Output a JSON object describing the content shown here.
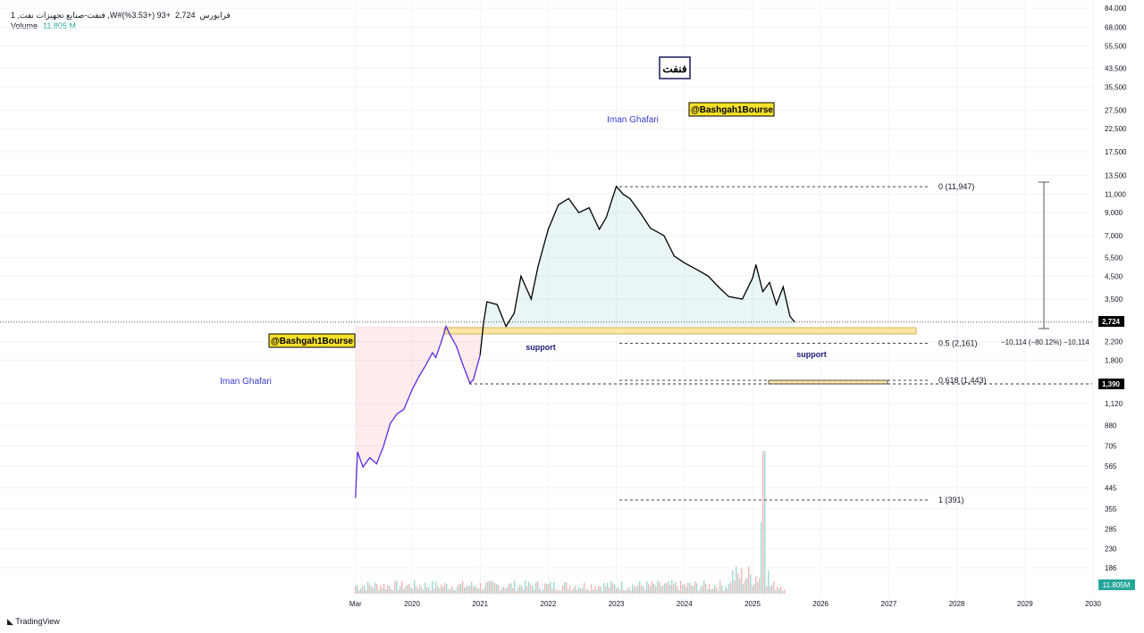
{
  "header": {
    "symbol": "1 ,فنفت-صنایع تجهیزات نفت ,W#فرابورس",
    "price": "2,724",
    "change": "+93 (+3.53%)",
    "volume_label": "Volume",
    "volume_value": "11.805 M"
  },
  "branding": "TradingView",
  "chart_data": {
    "type": "line",
    "title": "فنفت",
    "yscale": "log",
    "ylim": [
      180,
      90000
    ],
    "xlim": [
      2019.0,
      2030.1
    ],
    "y_ticks": [
      "84,000",
      "68,000",
      "55,500",
      "43,500",
      "35,500",
      "27,500",
      "22,500",
      "17,500",
      "13,500",
      "11,000",
      "9,000",
      "7,000",
      "5,500",
      "4,500",
      "3,500",
      "2,200",
      "1,800",
      "1,120",
      "880",
      "705",
      "565",
      "445",
      "355",
      "285",
      "230",
      "186"
    ],
    "y_tick_values": [
      84000,
      68000,
      55500,
      43500,
      35500,
      27500,
      22500,
      17500,
      13500,
      11000,
      9000,
      7000,
      5500,
      4500,
      3500,
      2200,
      1800,
      1120,
      880,
      705,
      565,
      445,
      355,
      285,
      230,
      186
    ],
    "x_ticks": [
      "Mar",
      "2020",
      "2021",
      "2022",
      "2023",
      "2024",
      "2025",
      "2026",
      "2027",
      "2028",
      "2029",
      "2030"
    ],
    "x_tick_values": [
      2019.17,
      2020,
      2021,
      2022,
      2023,
      2024,
      2025,
      2026,
      2027,
      2028,
      2029,
      2030
    ],
    "series": [
      {
        "name": "price",
        "x": [
          2019.17,
          2019.2,
          2019.28,
          2019.38,
          2019.48,
          2019.58,
          2019.68,
          2019.78,
          2019.88,
          2020.0,
          2020.1,
          2020.2,
          2020.3,
          2020.35,
          2020.45,
          2020.5,
          2020.55,
          2020.65,
          2020.75,
          2020.85,
          2020.9,
          2021.0,
          2021.05,
          2021.1,
          2021.25,
          2021.38,
          2021.5,
          2021.6,
          2021.75,
          2021.85,
          2022.0,
          2022.15,
          2022.3,
          2022.45,
          2022.6,
          2022.75,
          2022.85,
          2023.0,
          2023.1,
          2023.2,
          2023.35,
          2023.5,
          2023.7,
          2023.85,
          2024.0,
          2024.2,
          2024.35,
          2024.5,
          2024.65,
          2024.85,
          2025.0,
          2025.05,
          2025.15,
          2025.25,
          2025.35,
          2025.45,
          2025.55,
          2025.62
        ],
        "y": [
          400,
          660,
          560,
          620,
          580,
          700,
          900,
          1000,
          1050,
          1300,
          1500,
          1700,
          1950,
          1850,
          2300,
          2600,
          2400,
          2100,
          1700,
          1400,
          1450,
          1900,
          2700,
          3400,
          3300,
          2600,
          3000,
          4500,
          3500,
          5000,
          7500,
          9800,
          10500,
          9000,
          9500,
          7500,
          8500,
          12000,
          11000,
          10500,
          9000,
          7600,
          7000,
          5600,
          5200,
          4800,
          4500,
          4000,
          3600,
          3500,
          4400,
          5100,
          3800,
          4200,
          3300,
          4000,
          2900,
          2724
        ]
      }
    ],
    "last_price_label": "2,724",
    "volume_label": "11.805M",
    "support_price_label": "1,390",
    "fib_levels": [
      {
        "label": "0 (11,947)",
        "value": 11947
      },
      {
        "label": "0.5 (2,161)",
        "value": 2161
      },
      {
        "label": "0.618 (1,443)",
        "value": 1443
      },
      {
        "label": "1 (391)",
        "value": 391
      }
    ],
    "measure_label": "−10,114 (−80.12%) −10,114",
    "annotations": [
      "Iman Ghafari",
      "@Bashgah1Bourse",
      "support"
    ]
  }
}
